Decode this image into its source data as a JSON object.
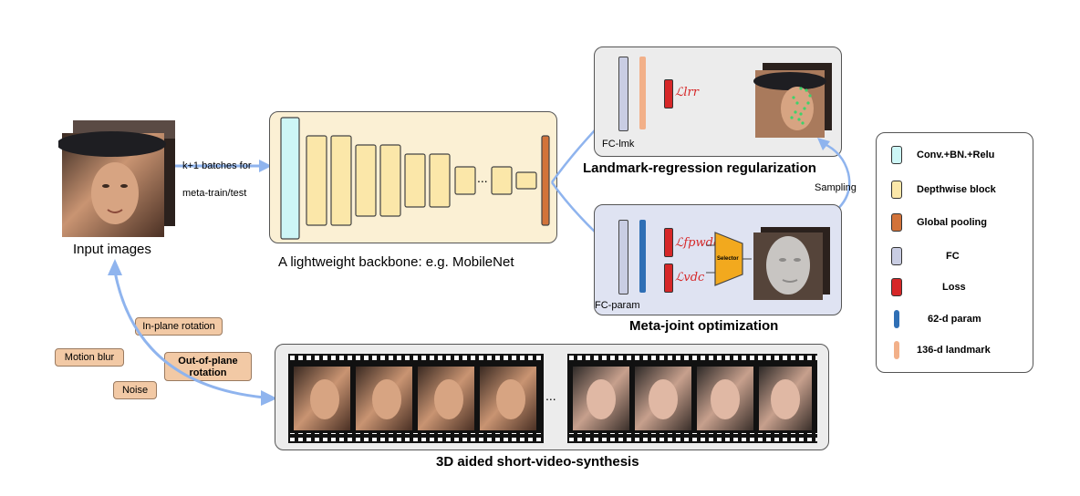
{
  "input": {
    "label": "Input images",
    "arrow_text_line1": "k+1 batches for",
    "arrow_text_line2": "meta-train/test"
  },
  "backbone": {
    "label": "A lightweight backbone: e.g. MobileNet",
    "ellipsis": "..."
  },
  "landmark_branch": {
    "fc_label": "FC-lmk",
    "loss_label": "ℒlrr",
    "title": "Landmark-regression regularization"
  },
  "meta_branch": {
    "fc_label": "FC-param",
    "loss1_label": "ℒfpwdc",
    "loss2_label": "ℒvdc",
    "selector_label": "Selector",
    "title": "Meta-joint optimization"
  },
  "sampling_label": "Sampling",
  "augmentations": {
    "in_plane": "In-plane rotation",
    "motion_blur": "Motion blur",
    "out_of_plane_line1": "Out-of-plane",
    "out_of_plane_line2": "rotation",
    "noise": "Noise"
  },
  "video": {
    "ellipsis": "...",
    "title": "3D aided short-video-synthesis"
  },
  "legend": {
    "items": [
      {
        "label": "Conv.+BN.+Relu",
        "color": "#cdf6f6"
      },
      {
        "label": "Depthwise block",
        "color": "#fbe7a9"
      },
      {
        "label": "Global pooling",
        "color": "#d2733a"
      },
      {
        "label": "FC",
        "color": "#c9cde3"
      },
      {
        "label": "Loss",
        "color": "#d62728"
      },
      {
        "label": "62-d param",
        "color": "#2f6fb5"
      },
      {
        "label": "136-d landmark",
        "color": "#f2b089"
      }
    ]
  },
  "colors": {
    "arrow": "#8fb4ee",
    "backbone_panel": "#fbf0d4",
    "meta_panel": "#dfe3f2",
    "gray_panel": "#ececec"
  }
}
